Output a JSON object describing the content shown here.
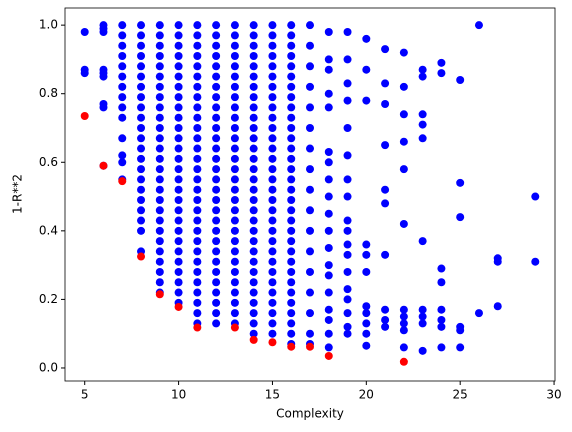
{
  "chart_data": {
    "type": "scatter",
    "x_label": "Complexity",
    "y_label": "1-R**2",
    "xlim": [
      3.95,
      30.05
    ],
    "ylim": [
      -0.038,
      1.05
    ],
    "xticks": [
      5,
      10,
      15,
      20,
      25,
      30
    ],
    "yticks": [
      {
        "value": 0,
        "label": "0.0"
      },
      {
        "value": 0.2,
        "label": "0.2"
      },
      {
        "value": 0.4,
        "label": "0.4"
      },
      {
        "value": 0.6,
        "label": "0.6"
      },
      {
        "value": 0.8,
        "label": "0.8"
      },
      {
        "value": 1,
        "label": "1.0"
      }
    ],
    "grid": false,
    "series": [
      {
        "color": "#0000ff",
        "x": [
          5,
          5,
          5,
          6,
          6,
          6,
          6,
          6,
          6,
          6,
          6,
          6,
          7,
          7,
          7,
          7,
          7,
          7,
          7,
          7,
          7,
          7,
          7,
          7,
          7,
          7,
          8,
          8,
          8,
          8,
          8,
          8,
          8,
          8,
          8,
          8,
          8,
          8,
          8,
          8,
          8,
          8,
          8,
          8,
          8,
          8,
          8,
          8,
          9,
          9,
          9,
          9,
          9,
          9,
          9,
          9,
          9,
          9,
          9,
          9,
          9,
          9,
          9,
          9,
          9,
          9,
          9,
          9,
          9,
          9,
          9,
          9,
          9,
          9,
          9,
          10,
          10,
          10,
          10,
          10,
          10,
          10,
          10,
          10,
          10,
          10,
          10,
          10,
          10,
          10,
          10,
          10,
          10,
          10,
          10,
          10,
          10,
          10,
          10,
          10,
          10,
          10,
          10,
          11,
          11,
          11,
          11,
          11,
          11,
          11,
          11,
          11,
          11,
          11,
          11,
          11,
          11,
          11,
          11,
          11,
          11,
          11,
          11,
          11,
          11,
          11,
          11,
          11,
          11,
          11,
          11,
          11,
          11,
          12,
          12,
          12,
          12,
          12,
          12,
          12,
          12,
          12,
          12,
          12,
          12,
          12,
          12,
          12,
          12,
          12,
          12,
          12,
          12,
          12,
          12,
          12,
          12,
          12,
          12,
          12,
          12,
          12,
          12,
          13,
          13,
          13,
          13,
          13,
          13,
          13,
          13,
          13,
          13,
          13,
          13,
          13,
          13,
          13,
          13,
          13,
          13,
          13,
          13,
          13,
          13,
          13,
          13,
          13,
          13,
          13,
          13,
          13,
          13,
          14,
          14,
          14,
          14,
          14,
          14,
          14,
          14,
          14,
          14,
          14,
          14,
          14,
          14,
          14,
          14,
          14,
          14,
          14,
          14,
          14,
          14,
          14,
          14,
          14,
          14,
          14,
          14,
          14,
          14,
          14,
          15,
          15,
          15,
          15,
          15,
          15,
          15,
          15,
          15,
          15,
          15,
          15,
          15,
          15,
          15,
          15,
          15,
          15,
          15,
          15,
          15,
          15,
          15,
          15,
          15,
          15,
          15,
          15,
          15,
          15,
          15,
          16,
          16,
          16,
          16,
          16,
          16,
          16,
          16,
          16,
          16,
          16,
          16,
          16,
          16,
          16,
          16,
          16,
          16,
          16,
          16,
          16,
          16,
          16,
          16,
          16,
          16,
          16,
          16,
          16,
          16,
          16,
          16,
          17,
          17,
          17,
          17,
          17,
          17,
          17,
          17,
          17,
          17,
          17,
          17,
          17,
          17,
          17,
          17,
          17,
          18,
          18,
          18,
          18,
          18,
          18,
          18,
          18,
          18,
          18,
          18,
          18,
          18,
          18,
          18,
          18,
          18,
          18,
          18,
          19,
          19,
          19,
          19,
          19,
          19,
          19,
          19,
          19,
          19,
          19,
          19,
          19,
          19,
          19,
          19,
          19,
          19,
          20,
          20,
          20,
          20,
          20,
          20,
          20,
          20,
          20,
          20,
          20,
          21,
          21,
          21,
          21,
          21,
          21,
          21,
          21,
          21,
          21,
          22,
          22,
          22,
          22,
          22,
          22,
          22,
          22,
          22,
          22,
          22,
          23,
          23,
          23,
          23,
          23,
          23,
          23,
          23,
          23,
          23,
          24,
          24,
          24,
          24,
          24,
          24,
          24,
          24,
          25,
          25,
          25,
          25,
          25,
          25,
          26,
          26,
          27,
          27,
          27,
          29,
          29
        ],
        "values": [
          0.98,
          0.87,
          0.86,
          1.0,
          0.99,
          0.98,
          0.87,
          0.86,
          0.85,
          0.77,
          0.76,
          0.59,
          1.0,
          0.97,
          0.94,
          0.91,
          0.88,
          0.85,
          0.82,
          0.79,
          0.76,
          0.73,
          0.67,
          0.62,
          0.6,
          0.55,
          1.0,
          0.97,
          0.94,
          0.91,
          0.88,
          0.85,
          0.82,
          0.79,
          0.76,
          0.73,
          0.7,
          0.67,
          0.64,
          0.61,
          0.58,
          0.55,
          0.52,
          0.49,
          0.46,
          0.43,
          0.4,
          0.34,
          1.0,
          0.97,
          0.94,
          0.91,
          0.88,
          0.85,
          0.82,
          0.79,
          0.76,
          0.73,
          0.7,
          0.67,
          0.64,
          0.61,
          0.58,
          0.55,
          0.52,
          0.49,
          0.46,
          0.43,
          0.4,
          0.37,
          0.34,
          0.31,
          0.28,
          0.25,
          0.22,
          1.0,
          0.97,
          0.94,
          0.91,
          0.88,
          0.85,
          0.82,
          0.79,
          0.76,
          0.73,
          0.7,
          0.67,
          0.64,
          0.61,
          0.58,
          0.55,
          0.52,
          0.49,
          0.46,
          0.43,
          0.4,
          0.37,
          0.34,
          0.31,
          0.28,
          0.25,
          0.22,
          0.19,
          1.0,
          0.97,
          0.94,
          0.91,
          0.88,
          0.85,
          0.82,
          0.79,
          0.76,
          0.73,
          0.7,
          0.67,
          0.64,
          0.61,
          0.58,
          0.55,
          0.52,
          0.49,
          0.46,
          0.43,
          0.4,
          0.37,
          0.34,
          0.31,
          0.28,
          0.25,
          0.22,
          0.19,
          0.16,
          0.13,
          1.0,
          0.97,
          0.94,
          0.91,
          0.88,
          0.85,
          0.82,
          0.79,
          0.76,
          0.73,
          0.7,
          0.67,
          0.64,
          0.61,
          0.58,
          0.55,
          0.52,
          0.49,
          0.46,
          0.43,
          0.4,
          0.37,
          0.34,
          0.31,
          0.28,
          0.25,
          0.22,
          0.19,
          0.16,
          0.13,
          1.0,
          0.97,
          0.94,
          0.91,
          0.88,
          0.85,
          0.82,
          0.79,
          0.76,
          0.73,
          0.7,
          0.67,
          0.64,
          0.61,
          0.58,
          0.55,
          0.52,
          0.49,
          0.46,
          0.43,
          0.4,
          0.37,
          0.34,
          0.31,
          0.28,
          0.25,
          0.22,
          0.19,
          0.16,
          0.13,
          1.0,
          0.97,
          0.94,
          0.91,
          0.88,
          0.85,
          0.82,
          0.79,
          0.76,
          0.73,
          0.7,
          0.67,
          0.64,
          0.61,
          0.58,
          0.55,
          0.52,
          0.49,
          0.46,
          0.43,
          0.4,
          0.37,
          0.34,
          0.31,
          0.28,
          0.25,
          0.22,
          0.19,
          0.16,
          0.13,
          0.1,
          1.0,
          0.97,
          0.94,
          0.91,
          0.88,
          0.85,
          0.82,
          0.79,
          0.76,
          0.73,
          0.7,
          0.67,
          0.64,
          0.61,
          0.58,
          0.55,
          0.52,
          0.49,
          0.46,
          0.43,
          0.4,
          0.37,
          0.34,
          0.31,
          0.28,
          0.25,
          0.22,
          0.19,
          0.16,
          0.13,
          0.1,
          1.0,
          0.97,
          0.94,
          0.91,
          0.88,
          0.85,
          0.82,
          0.79,
          0.76,
          0.73,
          0.7,
          0.67,
          0.64,
          0.61,
          0.58,
          0.55,
          0.52,
          0.49,
          0.46,
          0.43,
          0.4,
          0.37,
          0.34,
          0.31,
          0.28,
          0.25,
          0.22,
          0.19,
          0.16,
          0.13,
          0.1,
          0.07,
          1.0,
          0.94,
          0.88,
          0.82,
          0.76,
          0.7,
          0.64,
          0.58,
          0.52,
          0.46,
          0.4,
          0.34,
          0.28,
          0.22,
          0.16,
          0.1,
          0.07,
          0.98,
          0.9,
          0.87,
          0.8,
          0.76,
          0.63,
          0.6,
          0.55,
          0.5,
          0.45,
          0.4,
          0.35,
          0.3,
          0.27,
          0.22,
          0.17,
          0.14,
          0.1,
          0.06,
          0.98,
          0.9,
          0.83,
          0.78,
          0.7,
          0.62,
          0.55,
          0.5,
          0.43,
          0.4,
          0.36,
          0.33,
          0.28,
          0.23,
          0.2,
          0.16,
          0.12,
          0.1,
          0.96,
          0.87,
          0.78,
          0.36,
          0.33,
          0.28,
          0.18,
          0.16,
          0.13,
          0.1,
          0.065,
          0.93,
          0.83,
          0.77,
          0.65,
          0.52,
          0.48,
          0.33,
          0.17,
          0.14,
          0.12,
          0.92,
          0.82,
          0.74,
          0.66,
          0.58,
          0.42,
          0.17,
          0.15,
          0.13,
          0.11,
          0.06,
          0.87,
          0.85,
          0.74,
          0.71,
          0.67,
          0.37,
          0.17,
          0.15,
          0.13,
          0.05,
          0.89,
          0.86,
          0.29,
          0.25,
          0.17,
          0.14,
          0.12,
          0.06,
          0.84,
          0.54,
          0.44,
          0.12,
          0.11,
          0.06,
          1.0,
          0.16,
          0.32,
          0.31,
          0.18,
          0.5,
          0.31
        ]
      },
      {
        "color": "#ff0000",
        "x": [
          5,
          6,
          7,
          8,
          9,
          10,
          11,
          13,
          14,
          15,
          16,
          17,
          18,
          22
        ],
        "values": [
          0.735,
          0.59,
          0.545,
          0.325,
          0.215,
          0.178,
          0.118,
          0.118,
          0.082,
          0.075,
          0.062,
          0.062,
          0.035,
          0.018
        ]
      }
    ]
  }
}
